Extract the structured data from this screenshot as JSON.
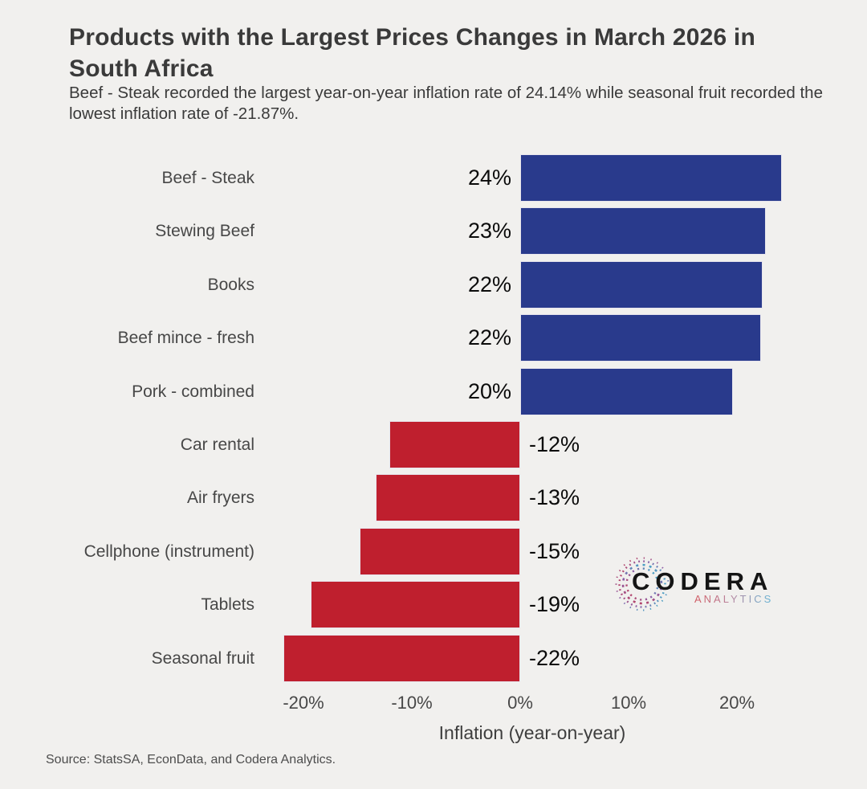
{
  "header": {
    "title": "Products with the Largest Prices Changes in March 2026 in South Africa",
    "subtitle": "Beef - Steak recorded the largest year-on-year inflation rate of 24.14% while seasonal fruit recorded the lowest inflation rate of -21.87%."
  },
  "chart_data": {
    "type": "bar",
    "orientation": "horizontal",
    "categories": [
      "Beef - Steak",
      "Stewing Beef",
      "Books",
      "Beef mince - fresh",
      "Pork - combined",
      "Car rental",
      "Air fryers",
      "Cellphone (instrument)",
      "Tablets",
      "Seasonal fruit"
    ],
    "values": [
      24.14,
      22.7,
      22.4,
      22.2,
      19.6,
      -12.1,
      -13.3,
      -14.8,
      -19.3,
      -21.87
    ],
    "bar_labels": [
      "24%",
      "23%",
      "22%",
      "22%",
      "20%",
      "-12%",
      "-13%",
      "-15%",
      "-19%",
      "-22%"
    ],
    "xlabel": "Inflation (year-on-year)",
    "x_tick_values": [
      -20,
      -10,
      0,
      10,
      20
    ],
    "x_tick_labels": [
      "-20%",
      "-10%",
      "0%",
      "10%",
      "20%"
    ],
    "xlim": [
      -24,
      25
    ],
    "grid": false,
    "legend": "none",
    "colors": {
      "positive": "#293A8C",
      "negative": "#BF1F2E",
      "background": "#F1F0EE"
    }
  },
  "logo": {
    "brand": "CODERA",
    "subbrand": "ANALYTICS",
    "icon_gradient": [
      "#C23A55",
      "#8B5FA8",
      "#2FB9CF"
    ]
  },
  "footer": {
    "source": "Source: StatsSA, EconData, and Codera Analytics."
  }
}
